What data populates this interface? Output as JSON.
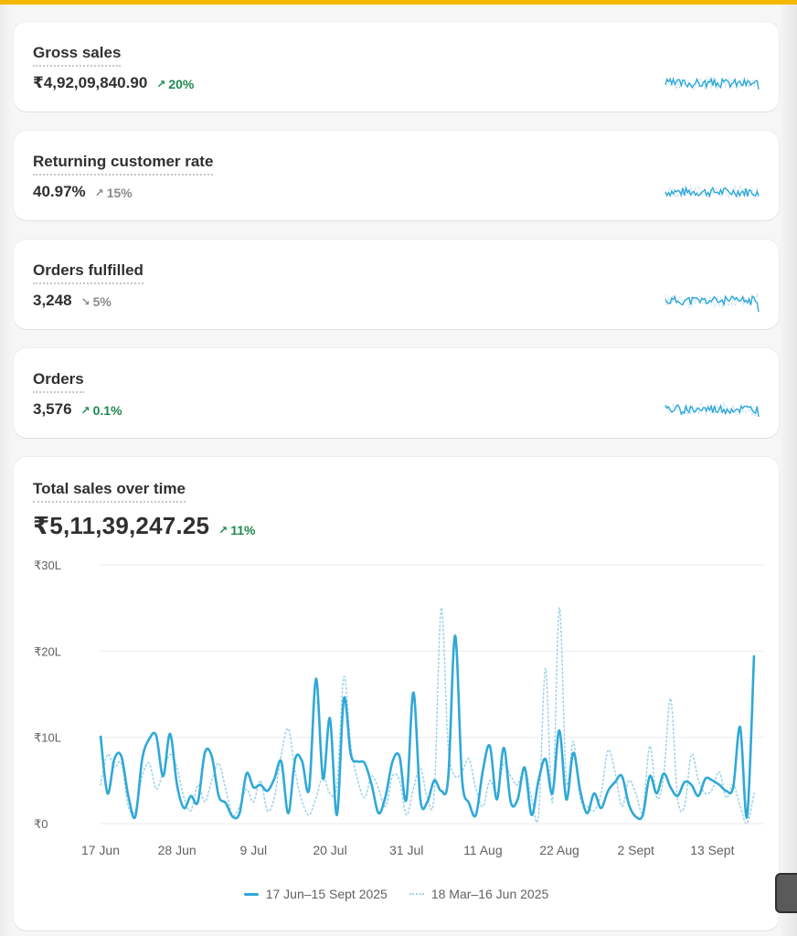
{
  "metrics": [
    {
      "title": "Gross sales",
      "value": "₹4,92,09,840.90",
      "delta": "20%",
      "direction": "up",
      "tone": "positive",
      "spark_seed": 3
    },
    {
      "title": "Returning customer rate",
      "value": "40.97%",
      "delta": "15%",
      "direction": "up",
      "tone": "neutral",
      "spark_seed": 7
    },
    {
      "title": "Orders fulfilled",
      "value": "3,248",
      "delta": "5%",
      "direction": "down",
      "tone": "neutral",
      "spark_seed": 11
    },
    {
      "title": "Orders",
      "value": "3,576",
      "delta": "0.1%",
      "direction": "up",
      "tone": "positive",
      "spark_seed": 19
    }
  ],
  "sales_chart": {
    "title": "Total sales over time",
    "total": "₹5,11,39,247.25",
    "delta": "11%",
    "direction": "up",
    "tone": "positive",
    "legend": {
      "current": "17 Jun–15 Sept 2025",
      "previous": "18 Mar–16 Jun 2025"
    },
    "colors": {
      "current": "#2fa8d8",
      "previous": "#9fd3ea",
      "positive": "#1f8a4c",
      "neutral": "#8a8a8a"
    }
  },
  "chart_data": {
    "type": "line",
    "title": "Total sales over time",
    "y_unit": "₹ lakh",
    "ylim": [
      0,
      30
    ],
    "y_ticks": [
      {
        "value": 0,
        "label": "₹0"
      },
      {
        "value": 10,
        "label": "₹10L"
      },
      {
        "value": 20,
        "label": "₹20L"
      },
      {
        "value": 30,
        "label": "₹30L"
      }
    ],
    "x_ticks": [
      {
        "index": 0,
        "label": "17 Jun"
      },
      {
        "index": 11,
        "label": "28 Jun"
      },
      {
        "index": 22,
        "label": "9 Jul"
      },
      {
        "index": 33,
        "label": "20 Jul"
      },
      {
        "index": 44,
        "label": "31 Jul"
      },
      {
        "index": 55,
        "label": "11 Aug"
      },
      {
        "index": 66,
        "label": "22 Aug"
      },
      {
        "index": 77,
        "label": "2 Sept"
      },
      {
        "index": 88,
        "label": "13 Sept"
      }
    ],
    "grid": true,
    "legend_position": "bottom",
    "series": [
      {
        "name": "17 Jun–15 Sept 2025",
        "style": "solid",
        "values": [
          10.2,
          3.5,
          7.5,
          7.8,
          3.2,
          0.8,
          7.5,
          9.8,
          10.2,
          5.5,
          10.4,
          4.5,
          1.8,
          3.2,
          2.5,
          8.2,
          7.8,
          3.2,
          2.4,
          0.8,
          1.2,
          5.8,
          4.2,
          4.5,
          3.8,
          5.2,
          7.2,
          1.2,
          7.5,
          7.2,
          4.0,
          16.8,
          5.2,
          12.2,
          1.0,
          14.5,
          8.0,
          7.2,
          7.0,
          4.5,
          1.2,
          3.2,
          7.2,
          7.8,
          2.8,
          15.2,
          2.8,
          2.5,
          5.0,
          3.8,
          5.2,
          21.8,
          5.2,
          2.4,
          1.0,
          6.2,
          9.0,
          2.8,
          8.8,
          2.5,
          2.8,
          6.5,
          1.0,
          5.0,
          7.5,
          3.5,
          10.8,
          2.8,
          8.2,
          3.8,
          1.2,
          3.5,
          1.8,
          3.8,
          4.8,
          5.5,
          2.2,
          0.8,
          1.0,
          5.5,
          3.5,
          5.8,
          4.2,
          3.2,
          4.8,
          4.5,
          3.2,
          5.2,
          5.0,
          4.5,
          3.8,
          4.2,
          11.2,
          0.8,
          19.5
        ]
      },
      {
        "name": "18 Mar–16 Jun 2025",
        "style": "dotted",
        "values": [
          4.5,
          8.0,
          6.5,
          7.0,
          2.0,
          1.5,
          5.5,
          7.0,
          4.0,
          6.0,
          8.0,
          6.5,
          3.0,
          1.5,
          4.5,
          2.5,
          5.0,
          7.0,
          4.0,
          1.0,
          2.0,
          4.0,
          2.5,
          5.0,
          1.5,
          3.0,
          8.0,
          11.0,
          6.0,
          2.5,
          1.0,
          3.0,
          5.5,
          3.5,
          4.5,
          17.0,
          9.0,
          5.0,
          3.0,
          5.5,
          4.0,
          2.0,
          5.5,
          5.0,
          1.0,
          4.0,
          6.5,
          3.0,
          3.5,
          25.0,
          9.0,
          5.5,
          6.0,
          7.5,
          4.0,
          2.0,
          5.0,
          3.5,
          7.0,
          5.5,
          4.5,
          6.5,
          3.0,
          1.0,
          18.0,
          2.5,
          25.0,
          5.0,
          9.5,
          3.0,
          2.0,
          1.5,
          3.5,
          8.5,
          6.0,
          2.0,
          5.0,
          3.5,
          1.5,
          9.0,
          3.0,
          5.5,
          14.5,
          3.0,
          2.0,
          8.0,
          5.0,
          3.5,
          4.0,
          6.0,
          3.0,
          4.5,
          2.0,
          0.0,
          3.5
        ]
      }
    ]
  }
}
